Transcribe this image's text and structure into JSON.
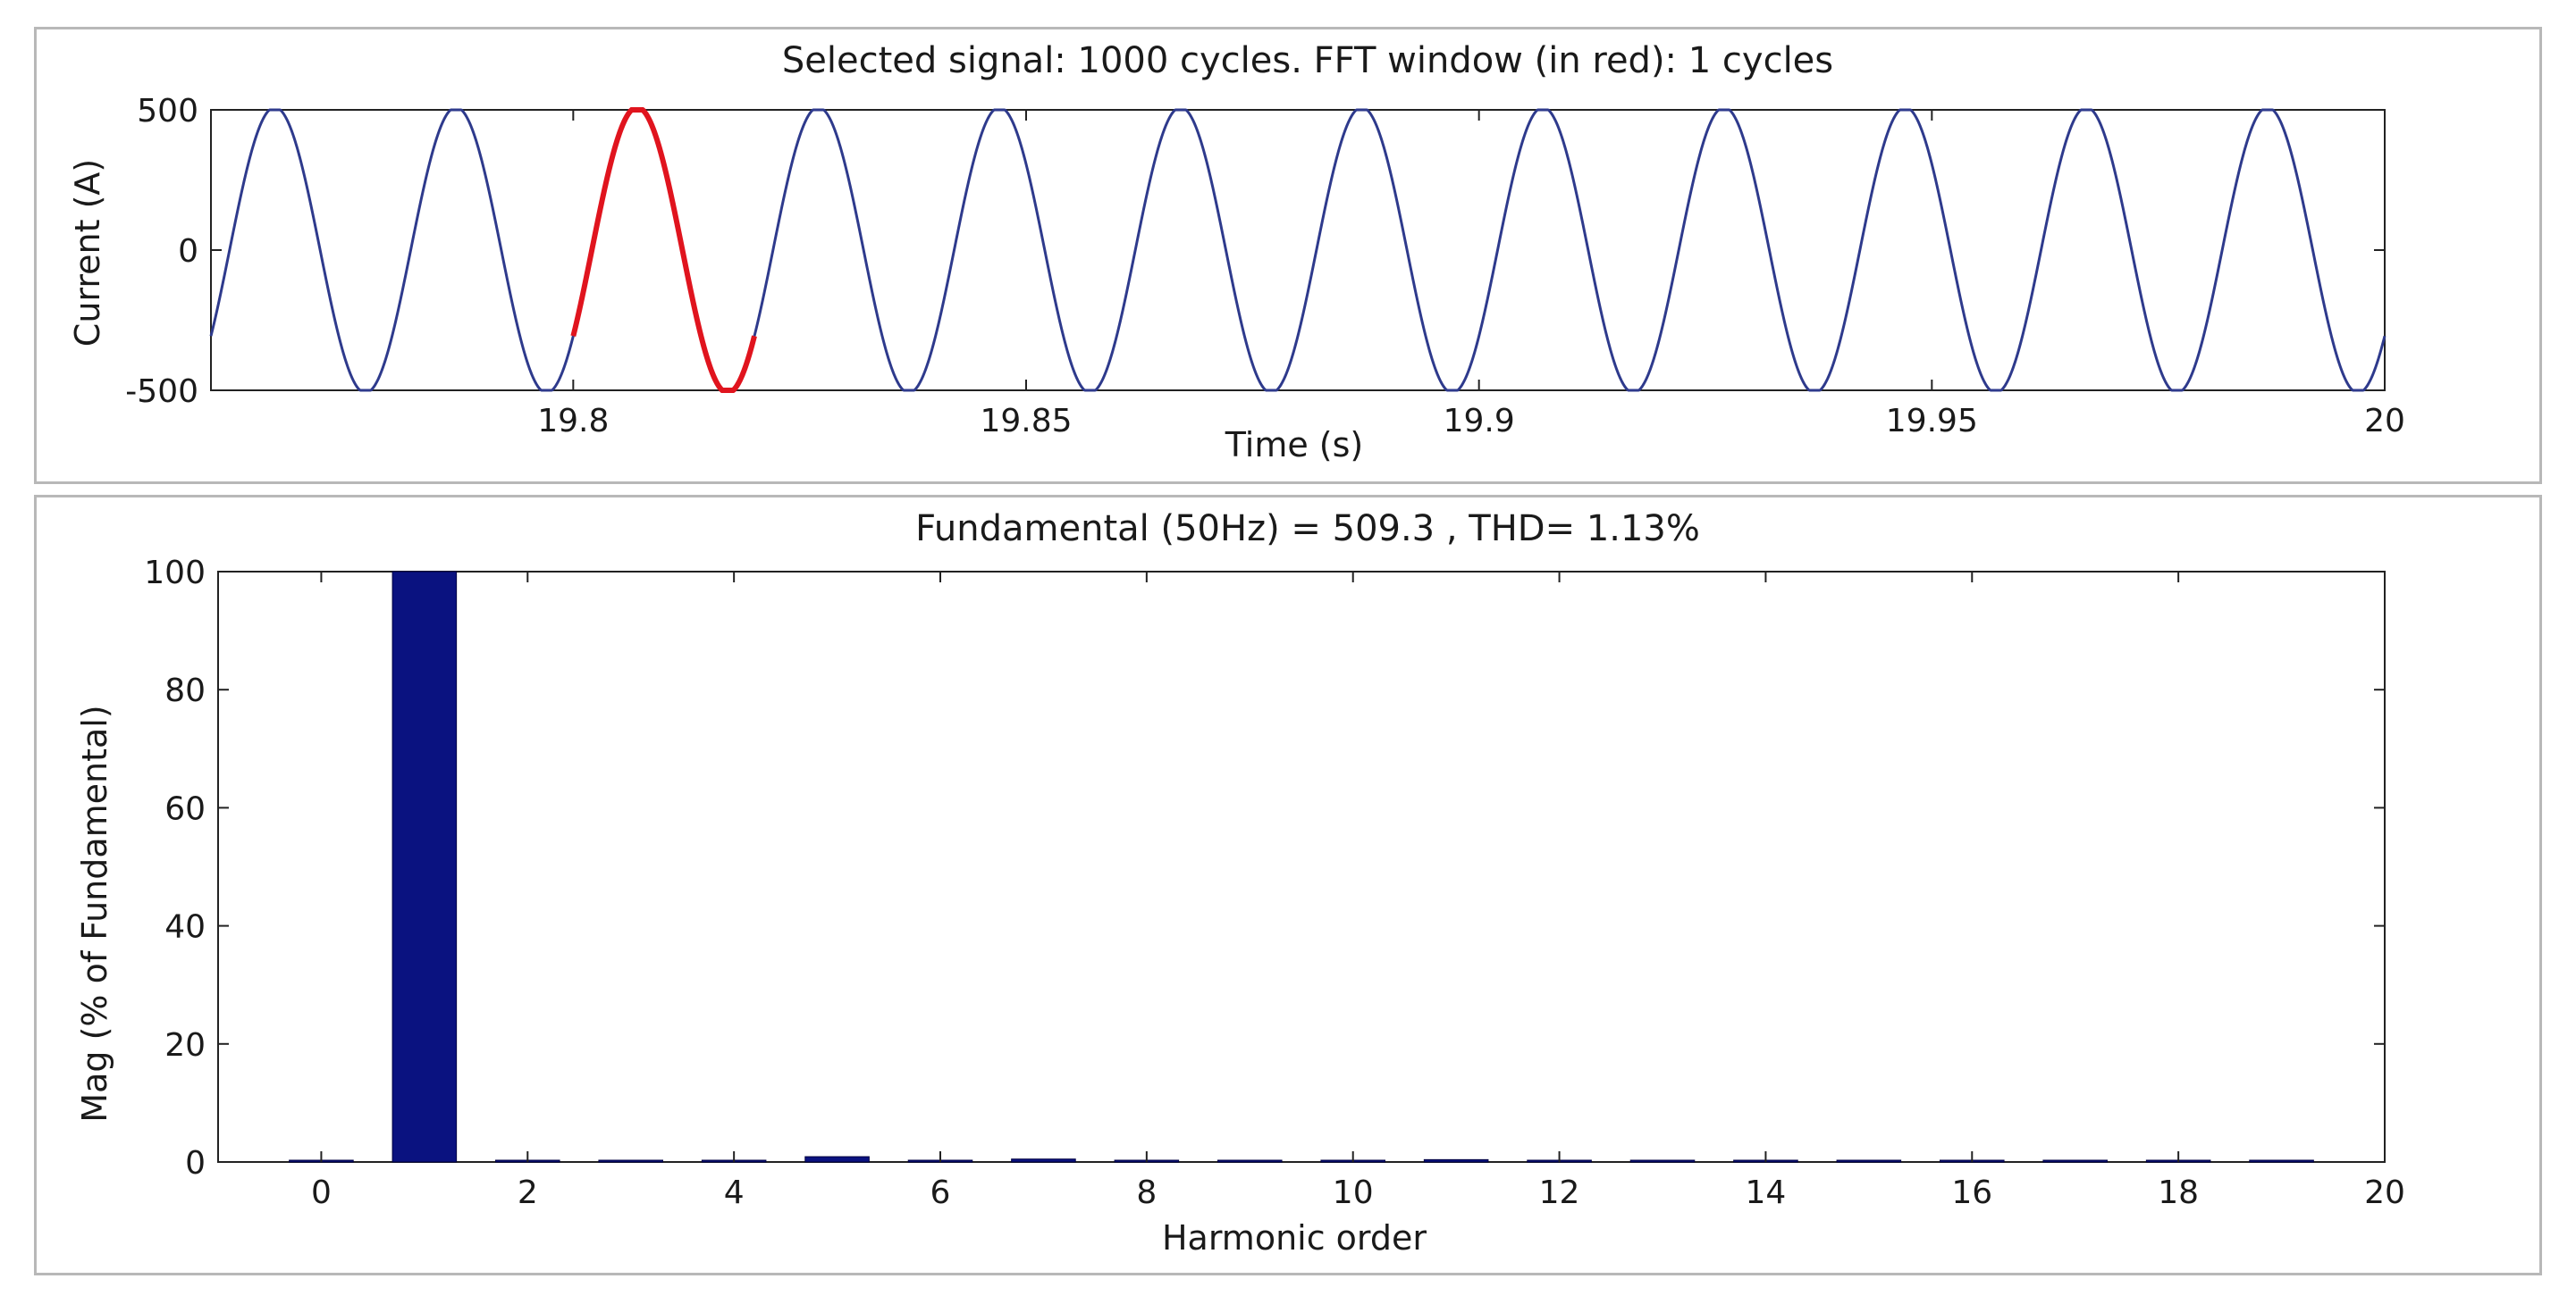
{
  "chart_data": [
    {
      "type": "line",
      "title": "Selected signal: 1000 cycles. FFT window (in red): 1 cycles",
      "xlabel": "Time (s)",
      "ylabel": "Current (A)",
      "xlim": [
        19.76,
        20.0
      ],
      "ylim": [
        -500,
        500
      ],
      "x_ticks": [
        "19.8",
        "19.85",
        "19.9",
        "19.95",
        "20"
      ],
      "y_ticks": [
        "500",
        "0",
        "-500"
      ],
      "signal": {
        "waveform": "sine",
        "amplitude": 509.3,
        "frequency_hz": 50,
        "phase_deg": -37,
        "color": "#2e3a8c"
      },
      "highlight": {
        "x_range": [
          19.8,
          19.82
        ],
        "color": "#e0141e"
      },
      "grid": false
    },
    {
      "type": "bar",
      "title": "Fundamental (50Hz) = 509.3 , THD= 1.13%",
      "xlabel": "Harmonic order",
      "ylabel": "Mag (% of Fundamental)",
      "xlim": [
        -1,
        20
      ],
      "ylim": [
        0,
        100
      ],
      "x_ticks": [
        "0",
        "2",
        "4",
        "6",
        "8",
        "10",
        "12",
        "14",
        "16",
        "18",
        "20"
      ],
      "y_ticks": [
        "0",
        "20",
        "40",
        "60",
        "80",
        "100"
      ],
      "categories": [
        0,
        1,
        2,
        3,
        4,
        5,
        6,
        7,
        8,
        9,
        10,
        11,
        12,
        13,
        14,
        15,
        16,
        17,
        18,
        19
      ],
      "values": [
        0.05,
        100,
        0.05,
        0.05,
        0.05,
        0.9,
        0.05,
        0.5,
        0.05,
        0.05,
        0.05,
        0.4,
        0.05,
        0.05,
        0.05,
        0.05,
        0.05,
        0.05,
        0.05,
        0.05
      ],
      "bar_color": "#0a1280",
      "grid": false
    }
  ]
}
